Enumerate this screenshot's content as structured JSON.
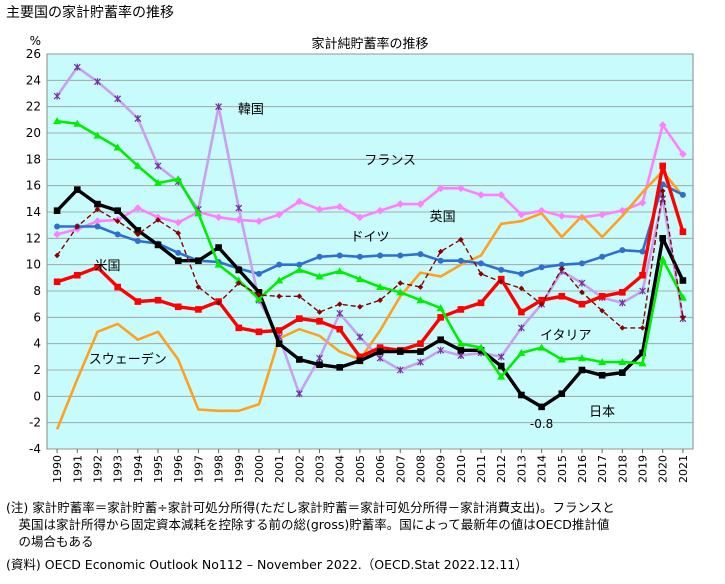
{
  "page": {
    "title": "主要国の家計貯蓄率の推移",
    "notes": [
      "(注) 家計貯蓄率＝家計貯蓄÷家計可処分所得(ただし家計貯蓄＝家計可処分所得－家計消費支出)。フランスと",
      "　英国は家計所得から固定資本減耗を控除する前の総(gross)貯蓄率。国によって最新年の値はOECD推計値",
      "　の場合もある",
      "(資料) OECD Economic Outlook No112 – November 2022.（OECD.Stat 2022.12.11）"
    ]
  },
  "chart_data": {
    "type": "line",
    "title": "家計純貯蓄率の推移",
    "ylabel": "%",
    "ylim": [
      -4,
      26
    ],
    "y_ticks": [
      -4,
      -2,
      0,
      2,
      4,
      6,
      8,
      10,
      12,
      14,
      16,
      18,
      20,
      22,
      24,
      26
    ],
    "grid": true,
    "plot_background": "#c8fcfc",
    "x": [
      1990,
      1991,
      1992,
      1993,
      1994,
      1995,
      1996,
      1997,
      1998,
      1999,
      2000,
      2001,
      2002,
      2003,
      2004,
      2005,
      2006,
      2007,
      2008,
      2009,
      2010,
      2011,
      2012,
      2013,
      2014,
      2015,
      2016,
      2017,
      2018,
      2019,
      2020,
      2021
    ],
    "annotations": [
      {
        "text": "-0.8",
        "x": 2014,
        "y": -2.4
      }
    ],
    "series": [
      {
        "name": "フランス",
        "color": "#ff80ff",
        "marker": "diamond",
        "label_at": [
          2006.5,
          17.6
        ],
        "values": [
          12.3,
          12.7,
          13.3,
          13.4,
          14.3,
          13.6,
          13.2,
          14.0,
          13.6,
          13.4,
          13.3,
          13.8,
          14.8,
          14.2,
          14.4,
          13.6,
          14.1,
          14.6,
          14.6,
          15.8,
          15.8,
          15.3,
          15.3,
          13.8,
          14.1,
          13.7,
          13.6,
          13.8,
          14.1,
          14.7,
          20.6,
          18.4
        ]
      },
      {
        "name": "英国",
        "color": "#ffa020",
        "marker": "none",
        "label_at": [
          2009.1,
          13.3
        ],
        "values": [
          -2.5,
          1.3,
          4.9,
          5.5,
          4.3,
          4.9,
          2.8,
          -1.0,
          -1.1,
          -1.1,
          -0.6,
          4.4,
          5.1,
          4.6,
          3.4,
          2.8,
          5.0,
          7.6,
          9.4,
          9.1,
          10.0,
          10.7,
          13.1,
          13.3,
          13.9,
          12.1,
          13.7,
          12.1,
          13.7,
          15.5,
          17.1,
          15.2
        ]
      },
      {
        "name": "ドイツ",
        "color": "#2f6fd0",
        "marker": "circle",
        "label_at": [
          2005.5,
          11.8
        ],
        "values": [
          12.9,
          12.9,
          12.9,
          12.3,
          11.8,
          11.6,
          10.9,
          10.3,
          10.2,
          9.7,
          9.3,
          10.0,
          10.0,
          10.6,
          10.7,
          10.6,
          10.7,
          10.7,
          10.8,
          10.3,
          10.3,
          10.1,
          9.6,
          9.3,
          9.8,
          10.0,
          10.1,
          10.6,
          11.1,
          11.0,
          16.1,
          15.3
        ]
      },
      {
        "name": "韓国",
        "color": "#c8a0f0",
        "marker": "cross",
        "label_at": [
          1999.6,
          21.5
        ],
        "values": [
          22.8,
          25.0,
          23.9,
          22.6,
          21.1,
          17.5,
          16.3,
          14.2,
          22.0,
          14.3,
          7.3,
          4.5,
          0.2,
          2.9,
          6.3,
          4.5,
          2.9,
          2.0,
          2.6,
          3.5,
          3.1,
          3.3,
          3.0,
          5.2,
          7.0,
          9.5,
          8.6,
          7.5,
          7.1,
          8.0,
          15.0,
          5.9
        ]
      },
      {
        "name": "米国",
        "color": "#ff0000",
        "marker": "square",
        "bold": true,
        "label_at": [
          1992.5,
          9.6
        ],
        "values": [
          8.7,
          9.2,
          9.8,
          8.3,
          7.2,
          7.3,
          6.8,
          6.6,
          7.2,
          5.2,
          4.9,
          5.0,
          5.9,
          5.7,
          5.1,
          3.0,
          3.7,
          3.5,
          4.0,
          6.0,
          6.6,
          7.1,
          8.9,
          6.4,
          7.3,
          7.6,
          7.0,
          7.6,
          7.9,
          9.2,
          17.5,
          12.5
        ]
      },
      {
        "name": "日本",
        "color": "#000000",
        "marker": "square",
        "bold": true,
        "label_at": [
          2017,
          -1.5
        ],
        "values": [
          14.1,
          15.7,
          14.6,
          14.1,
          12.6,
          11.5,
          10.3,
          10.3,
          11.3,
          9.6,
          7.9,
          4.0,
          2.8,
          2.4,
          2.2,
          2.7,
          3.4,
          3.4,
          3.4,
          4.3,
          3.5,
          3.5,
          2.3,
          0.1,
          -0.8,
          0.2,
          2.0,
          1.6,
          1.8,
          3.3,
          12.0,
          8.8
        ]
      },
      {
        "name": "イタリア",
        "color": "#00ee00",
        "marker": "triangle",
        "label_at": [
          2015.2,
          4.3
        ],
        "values": [
          20.9,
          20.7,
          19.8,
          18.9,
          17.5,
          16.2,
          16.5,
          13.9,
          10.0,
          8.8,
          7.4,
          8.8,
          9.6,
          9.1,
          9.5,
          8.9,
          8.3,
          7.9,
          7.3,
          6.7,
          4.0,
          3.7,
          1.5,
          3.3,
          3.7,
          2.8,
          2.9,
          2.6,
          2.6,
          2.5,
          10.4,
          7.5
        ]
      },
      {
        "name": "スウェーデン",
        "color": "#8b0000",
        "marker": "diamond",
        "dashed": true,
        "label_at": [
          1993.5,
          2.5
        ],
        "values": [
          10.7,
          12.9,
          14.2,
          13.3,
          12.3,
          13.4,
          12.4,
          8.3,
          7.1,
          8.6,
          7.7,
          7.6,
          7.6,
          6.4,
          7.0,
          6.8,
          7.3,
          8.6,
          8.3,
          11.0,
          11.9,
          9.3,
          8.7,
          8.2,
          7.0,
          9.7,
          7.9,
          6.5,
          5.2,
          5.2,
          15.6,
          6.0
        ]
      }
    ]
  }
}
